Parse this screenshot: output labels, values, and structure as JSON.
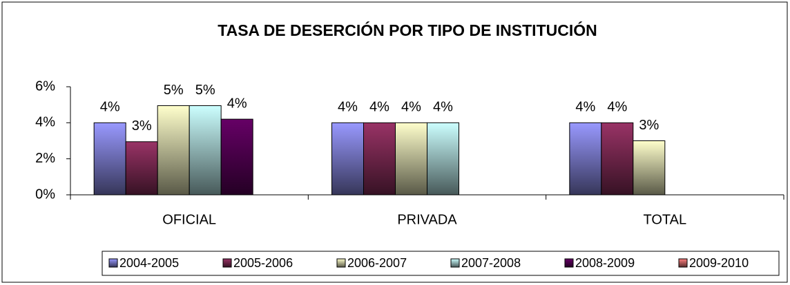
{
  "chart_data": {
    "type": "bar",
    "title": "TASA DE DESERCIÓN POR TIPO DE INSTITUCIÓN",
    "categories": [
      "OFICIAL",
      "PRIVADA",
      "TOTAL"
    ],
    "series": [
      {
        "name": "2004-2005",
        "color": "#9999ff",
        "values": [
          4,
          4,
          4
        ],
        "value_labels": [
          "4%",
          "4%",
          "4%"
        ]
      },
      {
        "name": "2005-2006",
        "color": "#993366",
        "values": [
          2.95,
          4,
          4
        ],
        "value_labels": [
          "3%",
          "4%",
          "4%"
        ]
      },
      {
        "name": "2006-2007",
        "color": "#ffffcc",
        "values": [
          4.95,
          4,
          3
        ],
        "value_labels": [
          "5%",
          "4%",
          "3%"
        ]
      },
      {
        "name": "2007-2008",
        "color": "#ccffff",
        "values": [
          4.95,
          4,
          null
        ],
        "value_labels": [
          "5%",
          "4%",
          null
        ]
      },
      {
        "name": "2008-2009",
        "color": "#660066",
        "values": [
          4.2,
          null,
          null
        ],
        "value_labels": [
          "4%",
          null,
          null
        ]
      },
      {
        "name": "2009-2010",
        "color": "#ff8080",
        "values": [
          null,
          null,
          null
        ],
        "value_labels": [
          null,
          null,
          null
        ]
      }
    ],
    "ylim": [
      0,
      6
    ],
    "yticks": [
      {
        "value": 0,
        "label": "0%"
      },
      {
        "value": 2,
        "label": "2%"
      },
      {
        "value": 4,
        "label": "4%"
      },
      {
        "value": 6,
        "label": "6%"
      }
    ],
    "legend": "bottom"
  }
}
